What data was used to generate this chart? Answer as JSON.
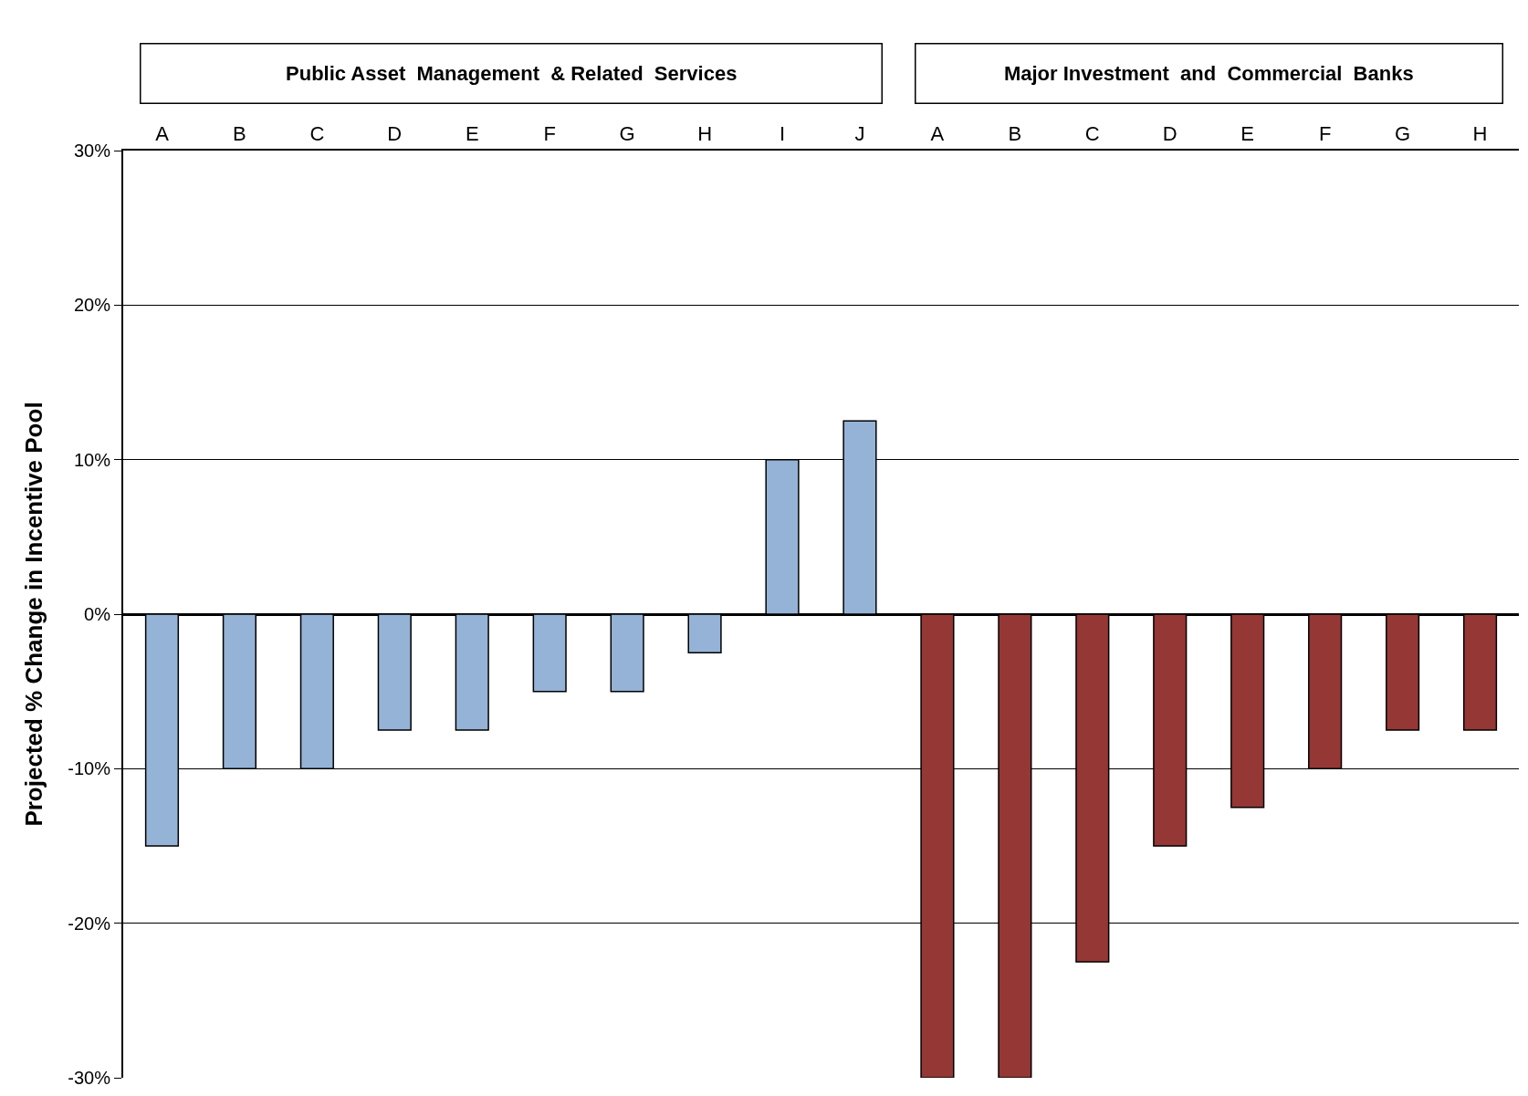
{
  "chart_data": {
    "type": "bar",
    "ylabel": "Projected % Change in Incentive Pool",
    "categories": [
      "A",
      "B",
      "C",
      "D",
      "E",
      "F",
      "G",
      "H",
      "I",
      "J",
      "A",
      "B",
      "C",
      "D",
      "E",
      "F",
      "G",
      "H"
    ],
    "series": [
      {
        "color": "#95b3d7",
        "values": [
          -15,
          -10,
          -10,
          -7.5,
          -7.5,
          -5,
          -5,
          -2.5,
          10,
          12.5,
          null,
          null,
          null,
          null,
          null,
          null,
          null,
          null
        ]
      },
      {
        "color": "#953735",
        "values": [
          null,
          null,
          null,
          null,
          null,
          null,
          null,
          null,
          null,
          null,
          -30,
          -30,
          -22.5,
          -15,
          -12.5,
          -10,
          -7.5,
          -7.5
        ]
      }
    ],
    "annotations": [
      "Public Asset  Management  & Related  Services",
      "Major Investment  and  Commercial  Banks"
    ],
    "ylim": [
      -30,
      30
    ],
    "yticks": [
      {
        "value": 30,
        "label": "30%"
      },
      {
        "value": 20,
        "label": "20%"
      },
      {
        "value": 10,
        "label": "10%"
      },
      {
        "value": 0,
        "label": "0%"
      },
      {
        "value": -10,
        "label": "-10%"
      },
      {
        "value": -20,
        "label": "-20%"
      },
      {
        "value": -30,
        "label": "-30%"
      }
    ],
    "grid": "y"
  }
}
